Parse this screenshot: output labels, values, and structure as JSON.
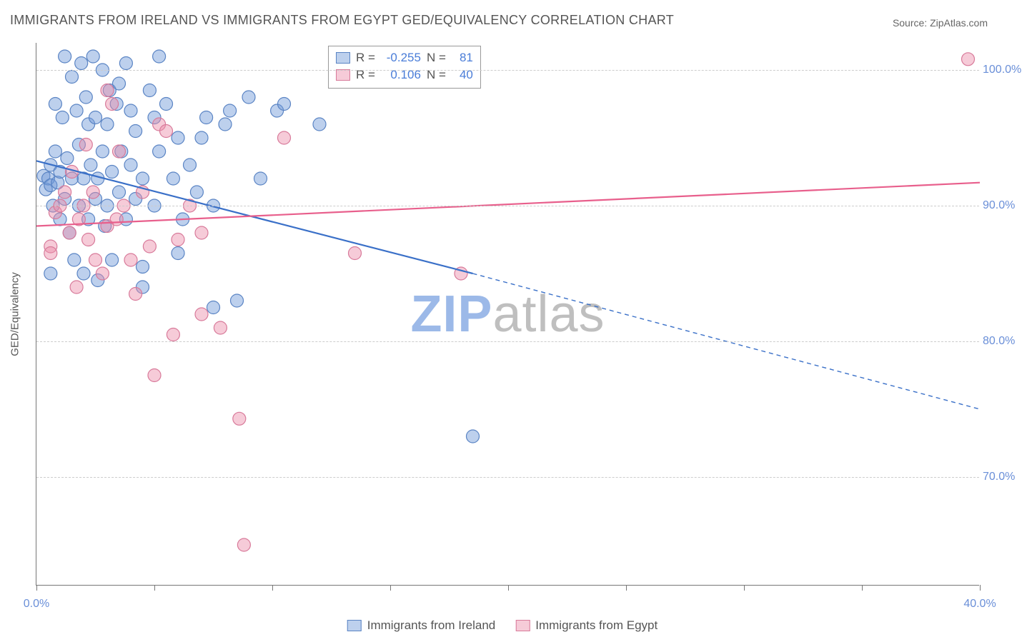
{
  "title": "IMMIGRANTS FROM IRELAND VS IMMIGRANTS FROM EGYPT GED/EQUIVALENCY CORRELATION CHART",
  "source": "Source: ZipAtlas.com",
  "watermark_a": "ZIP",
  "watermark_b": "atlas",
  "chart": {
    "type": "scatter",
    "yaxis_label": "GED/Equivalency",
    "xlim": [
      0,
      40
    ],
    "ylim": [
      62,
      102
    ],
    "xticks": [
      0,
      5,
      10,
      15,
      20,
      25,
      30,
      35,
      40
    ],
    "yticks": [
      70,
      80,
      90,
      100
    ],
    "xtick_labels": {
      "0": "0.0%",
      "40": "40.0%"
    },
    "ytick_labels": {
      "70": "70.0%",
      "80": "80.0%",
      "90": "90.0%",
      "100": "100.0%"
    },
    "grid_color": "#cccccc",
    "axis_color": "#777777",
    "tick_label_color": "#6a8fd8",
    "background_color": "#ffffff",
    "series": [
      {
        "name": "Immigrants from Ireland",
        "marker_fill": "rgba(108,150,216,0.45)",
        "marker_stroke": "#5a84c4",
        "marker_radius": 9,
        "line_color": "#3a70c8",
        "line_width": 2.2,
        "R": "-0.255",
        "N": "81",
        "trend": {
          "x1": 0,
          "y1": 93.3,
          "x2_solid": 18.5,
          "y2_solid": 85.0,
          "x2_dash": 40,
          "y2_dash": 75.0
        },
        "points": [
          [
            0.3,
            92.2
          ],
          [
            0.4,
            91.2
          ],
          [
            0.5,
            92.0
          ],
          [
            0.6,
            91.5
          ],
          [
            0.6,
            93.0
          ],
          [
            0.7,
            90.0
          ],
          [
            0.8,
            94.0
          ],
          [
            0.8,
            97.5
          ],
          [
            0.9,
            91.7
          ],
          [
            1.0,
            89.0
          ],
          [
            1.0,
            92.5
          ],
          [
            1.1,
            96.5
          ],
          [
            1.2,
            90.5
          ],
          [
            1.2,
            101.0
          ],
          [
            1.3,
            93.5
          ],
          [
            1.4,
            88.0
          ],
          [
            1.5,
            99.5
          ],
          [
            1.5,
            92.0
          ],
          [
            1.6,
            86.0
          ],
          [
            1.7,
            97.0
          ],
          [
            1.8,
            90.0
          ],
          [
            1.8,
            94.5
          ],
          [
            1.9,
            100.5
          ],
          [
            2.0,
            92.0
          ],
          [
            2.0,
            85.0
          ],
          [
            2.1,
            98.0
          ],
          [
            2.2,
            96.0
          ],
          [
            2.2,
            89.0
          ],
          [
            2.3,
            93.0
          ],
          [
            2.4,
            101.0
          ],
          [
            2.5,
            90.5
          ],
          [
            2.5,
            96.5
          ],
          [
            2.6,
            84.5
          ],
          [
            2.6,
            92.0
          ],
          [
            2.8,
            94.0
          ],
          [
            2.8,
            100.0
          ],
          [
            2.9,
            88.5
          ],
          [
            3.0,
            90.0
          ],
          [
            3.0,
            96.0
          ],
          [
            3.1,
            98.5
          ],
          [
            3.2,
            92.5
          ],
          [
            3.2,
            86.0
          ],
          [
            3.4,
            97.5
          ],
          [
            3.5,
            91.0
          ],
          [
            3.5,
            99.0
          ],
          [
            3.6,
            94.0
          ],
          [
            3.8,
            100.5
          ],
          [
            3.8,
            89.0
          ],
          [
            4.0,
            93.0
          ],
          [
            4.0,
            97.0
          ],
          [
            4.2,
            90.5
          ],
          [
            4.2,
            95.5
          ],
          [
            4.5,
            92.0
          ],
          [
            4.5,
            85.5
          ],
          [
            4.5,
            84.0
          ],
          [
            4.8,
            98.5
          ],
          [
            5.0,
            96.5
          ],
          [
            5.0,
            90.0
          ],
          [
            5.2,
            101.0
          ],
          [
            5.2,
            94.0
          ],
          [
            5.5,
            97.5
          ],
          [
            5.8,
            92.0
          ],
          [
            6.0,
            86.5
          ],
          [
            6.0,
            95.0
          ],
          [
            6.2,
            89.0
          ],
          [
            6.5,
            93.0
          ],
          [
            6.8,
            91.0
          ],
          [
            7.0,
            95.0
          ],
          [
            7.2,
            96.5
          ],
          [
            7.5,
            82.5
          ],
          [
            7.5,
            90.0
          ],
          [
            8.0,
            96.0
          ],
          [
            8.2,
            97.0
          ],
          [
            8.5,
            83.0
          ],
          [
            9.0,
            98.0
          ],
          [
            9.5,
            92.0
          ],
          [
            10.2,
            97.0
          ],
          [
            10.5,
            97.5
          ],
          [
            12.0,
            96.0
          ],
          [
            18.5,
            73.0
          ],
          [
            0.6,
            85.0
          ]
        ]
      },
      {
        "name": "Immigrants from Egypt",
        "marker_fill": "rgba(236,140,168,0.45)",
        "marker_stroke": "#d87a9a",
        "marker_radius": 9,
        "line_color": "#e85f8c",
        "line_width": 2.2,
        "R": "0.106",
        "N": "40",
        "trend": {
          "x1": 0,
          "y1": 88.5,
          "x2_solid": 40,
          "y2_solid": 91.7,
          "x2_dash": 40,
          "y2_dash": 91.7
        },
        "points": [
          [
            0.6,
            87.0
          ],
          [
            0.6,
            86.5
          ],
          [
            0.8,
            89.5
          ],
          [
            1.0,
            90.0
          ],
          [
            1.2,
            91.0
          ],
          [
            1.4,
            88.0
          ],
          [
            1.5,
            92.5
          ],
          [
            1.7,
            84.0
          ],
          [
            1.8,
            89.0
          ],
          [
            2.0,
            90.0
          ],
          [
            2.1,
            94.5
          ],
          [
            2.2,
            87.5
          ],
          [
            2.4,
            91.0
          ],
          [
            2.5,
            86.0
          ],
          [
            2.8,
            85.0
          ],
          [
            3.0,
            88.5
          ],
          [
            3.2,
            97.5
          ],
          [
            3.4,
            89.0
          ],
          [
            3.5,
            94.0
          ],
          [
            3.7,
            90.0
          ],
          [
            4.0,
            86.0
          ],
          [
            4.2,
            83.5
          ],
          [
            4.5,
            91.0
          ],
          [
            4.8,
            87.0
          ],
          [
            5.0,
            77.5
          ],
          [
            5.2,
            96.0
          ],
          [
            5.5,
            95.5
          ],
          [
            5.8,
            80.5
          ],
          [
            6.0,
            87.5
          ],
          [
            6.5,
            90.0
          ],
          [
            7.0,
            88.0
          ],
          [
            7.0,
            82.0
          ],
          [
            7.8,
            81.0
          ],
          [
            8.6,
            74.3
          ],
          [
            8.8,
            65.0
          ],
          [
            10.5,
            95.0
          ],
          [
            13.5,
            86.5
          ],
          [
            18.0,
            85.0
          ],
          [
            39.5,
            100.8
          ],
          [
            3.0,
            98.5
          ]
        ]
      }
    ]
  },
  "legend_bottom": [
    {
      "swatch": "blue",
      "label": "Immigrants from Ireland"
    },
    {
      "swatch": "pink",
      "label": "Immigrants from Egypt"
    }
  ],
  "legend_corr_labels": {
    "R": "R =",
    "N": "N ="
  }
}
